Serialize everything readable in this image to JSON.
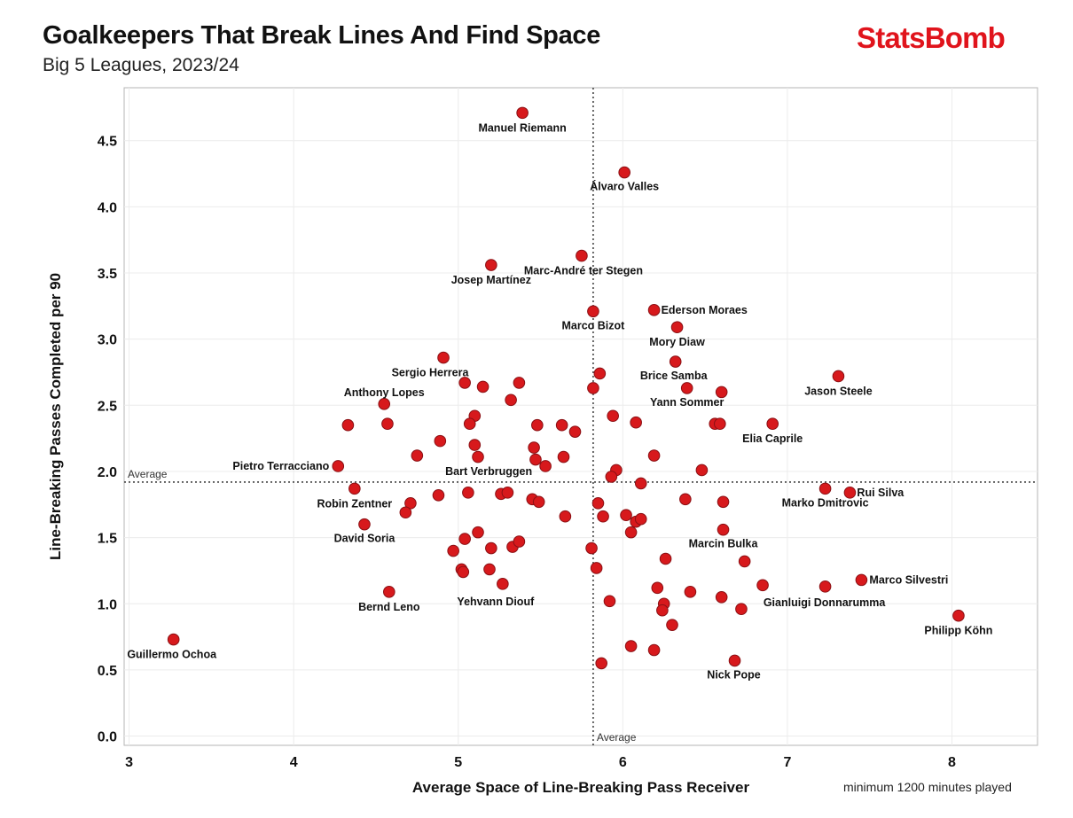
{
  "header": {
    "title": "Goalkeepers That Break Lines And Find Space",
    "subtitle": "Big 5 Leagues, 2023/24",
    "brand": "StatsBomb",
    "footnote": "minimum 1200 minutes played"
  },
  "colors": {
    "point_fill": "#d7191c",
    "point_stroke": "#8a1014",
    "brand": "#e0141c"
  },
  "chart_data": {
    "type": "scatter",
    "xlabel": "Average Space of Line-Breaking Pass Receiver",
    "ylabel": "Line-Breaking Passes Completed per 90",
    "xlim": [
      2.97,
      8.52
    ],
    "ylim": [
      -0.07,
      4.9
    ],
    "xticks": [
      3,
      4,
      5,
      6,
      7,
      8
    ],
    "yticks": [
      0.0,
      0.5,
      1.0,
      1.5,
      2.0,
      2.5,
      3.0,
      3.5,
      4.0,
      4.5
    ],
    "grid": true,
    "reference_lines": [
      {
        "axis": "x",
        "value": 5.82,
        "label": "Average"
      },
      {
        "axis": "y",
        "value": 1.92,
        "label": "Average"
      }
    ],
    "labeled_points": [
      {
        "name": "Manuel Riemann",
        "x": 5.39,
        "y": 4.71
      },
      {
        "name": "Álvaro Valles",
        "x": 6.01,
        "y": 4.26
      },
      {
        "name": "Marc-André ter Stegen",
        "x": 5.75,
        "y": 3.63
      },
      {
        "name": "Josep Martínez",
        "x": 5.2,
        "y": 3.56
      },
      {
        "name": "Ederson Moraes",
        "x": 6.19,
        "y": 3.22
      },
      {
        "name": "Marco Bizot",
        "x": 5.82,
        "y": 3.21
      },
      {
        "name": "Mory Diaw",
        "x": 6.33,
        "y": 3.09
      },
      {
        "name": "Brice Samba",
        "x": 6.32,
        "y": 2.83
      },
      {
        "name": "Sergio Herrera",
        "x": 4.91,
        "y": 2.86
      },
      {
        "name": "Jason Steele",
        "x": 7.31,
        "y": 2.72
      },
      {
        "name": "Yann Sommer",
        "x": 6.39,
        "y": 2.63
      },
      {
        "name": "Anthony Lopes",
        "x": 4.55,
        "y": 2.51
      },
      {
        "name": "Elia Caprile",
        "x": 6.91,
        "y": 2.36
      },
      {
        "name": "Pietro Terracciano",
        "x": 4.27,
        "y": 2.04
      },
      {
        "name": "Bart Verbruggen",
        "x": 5.53,
        "y": 2.04
      },
      {
        "name": "Rui Silva",
        "x": 7.38,
        "y": 1.84
      },
      {
        "name": "Marko Dmitrovic",
        "x": 7.23,
        "y": 1.87
      },
      {
        "name": "Robin Zentner",
        "x": 4.37,
        "y": 1.87
      },
      {
        "name": "David Soria",
        "x": 4.43,
        "y": 1.6
      },
      {
        "name": "Marcin Bulka",
        "x": 6.61,
        "y": 1.56
      },
      {
        "name": "Marco Silvestri",
        "x": 7.45,
        "y": 1.18
      },
      {
        "name": "Gianluigi Donnarumma",
        "x": 7.23,
        "y": 1.13
      },
      {
        "name": "Bernd Leno",
        "x": 4.58,
        "y": 1.09
      },
      {
        "name": "Yehvann Diouf",
        "x": 5.27,
        "y": 1.15
      },
      {
        "name": "Philipp Köhn",
        "x": 8.04,
        "y": 0.91
      },
      {
        "name": "Guillermo Ochoa",
        "x": 3.27,
        "y": 0.73
      },
      {
        "name": "Nick Pope",
        "x": 6.68,
        "y": 0.57
      }
    ],
    "points": [
      {
        "x": 4.33,
        "y": 2.35
      },
      {
        "x": 4.57,
        "y": 2.36
      },
      {
        "x": 4.75,
        "y": 2.12
      },
      {
        "x": 4.71,
        "y": 1.76
      },
      {
        "x": 4.68,
        "y": 1.69
      },
      {
        "x": 4.89,
        "y": 2.23
      },
      {
        "x": 4.88,
        "y": 1.82
      },
      {
        "x": 5.04,
        "y": 2.67
      },
      {
        "x": 5.15,
        "y": 2.64
      },
      {
        "x": 5.1,
        "y": 2.42
      },
      {
        "x": 5.07,
        "y": 2.36
      },
      {
        "x": 5.1,
        "y": 2.2
      },
      {
        "x": 5.12,
        "y": 2.11
      },
      {
        "x": 5.06,
        "y": 1.84
      },
      {
        "x": 5.32,
        "y": 2.54
      },
      {
        "x": 5.37,
        "y": 2.67
      },
      {
        "x": 5.48,
        "y": 2.35
      },
      {
        "x": 5.46,
        "y": 2.18
      },
      {
        "x": 5.47,
        "y": 2.09
      },
      {
        "x": 5.63,
        "y": 2.35
      },
      {
        "x": 5.71,
        "y": 2.3
      },
      {
        "x": 5.64,
        "y": 2.11
      },
      {
        "x": 5.26,
        "y": 1.83
      },
      {
        "x": 5.3,
        "y": 1.84
      },
      {
        "x": 5.45,
        "y": 1.79
      },
      {
        "x": 5.49,
        "y": 1.77
      },
      {
        "x": 5.04,
        "y": 1.49
      },
      {
        "x": 5.12,
        "y": 1.54
      },
      {
        "x": 5.2,
        "y": 1.42
      },
      {
        "x": 5.33,
        "y": 1.43
      },
      {
        "x": 5.37,
        "y": 1.47
      },
      {
        "x": 4.97,
        "y": 1.4
      },
      {
        "x": 5.02,
        "y": 1.26
      },
      {
        "x": 5.03,
        "y": 1.24
      },
      {
        "x": 5.19,
        "y": 1.26
      },
      {
        "x": 5.86,
        "y": 2.74
      },
      {
        "x": 5.82,
        "y": 2.63
      },
      {
        "x": 5.94,
        "y": 2.42
      },
      {
        "x": 6.08,
        "y": 2.37
      },
      {
        "x": 6.19,
        "y": 2.12
      },
      {
        "x": 5.96,
        "y": 2.01
      },
      {
        "x": 5.93,
        "y": 1.96
      },
      {
        "x": 6.11,
        "y": 1.91
      },
      {
        "x": 6.48,
        "y": 2.01
      },
      {
        "x": 6.56,
        "y": 2.36
      },
      {
        "x": 6.59,
        "y": 2.36
      },
      {
        "x": 6.6,
        "y": 2.6
      },
      {
        "x": 5.65,
        "y": 1.66
      },
      {
        "x": 5.85,
        "y": 1.76
      },
      {
        "x": 5.88,
        "y": 1.66
      },
      {
        "x": 6.02,
        "y": 1.67
      },
      {
        "x": 6.08,
        "y": 1.62
      },
      {
        "x": 6.11,
        "y": 1.64
      },
      {
        "x": 6.05,
        "y": 1.54
      },
      {
        "x": 6.38,
        "y": 1.79
      },
      {
        "x": 6.61,
        "y": 1.77
      },
      {
        "x": 5.81,
        "y": 1.42
      },
      {
        "x": 5.84,
        "y": 1.27
      },
      {
        "x": 6.26,
        "y": 1.34
      },
      {
        "x": 6.74,
        "y": 1.32
      },
      {
        "x": 6.21,
        "y": 1.12
      },
      {
        "x": 6.41,
        "y": 1.09
      },
      {
        "x": 6.6,
        "y": 1.05
      },
      {
        "x": 6.85,
        "y": 1.14
      },
      {
        "x": 5.92,
        "y": 1.02
      },
      {
        "x": 6.25,
        "y": 1.0
      },
      {
        "x": 6.24,
        "y": 0.95
      },
      {
        "x": 6.3,
        "y": 0.84
      },
      {
        "x": 6.72,
        "y": 0.96
      },
      {
        "x": 6.05,
        "y": 0.68
      },
      {
        "x": 6.19,
        "y": 0.65
      },
      {
        "x": 5.87,
        "y": 0.55
      }
    ]
  }
}
